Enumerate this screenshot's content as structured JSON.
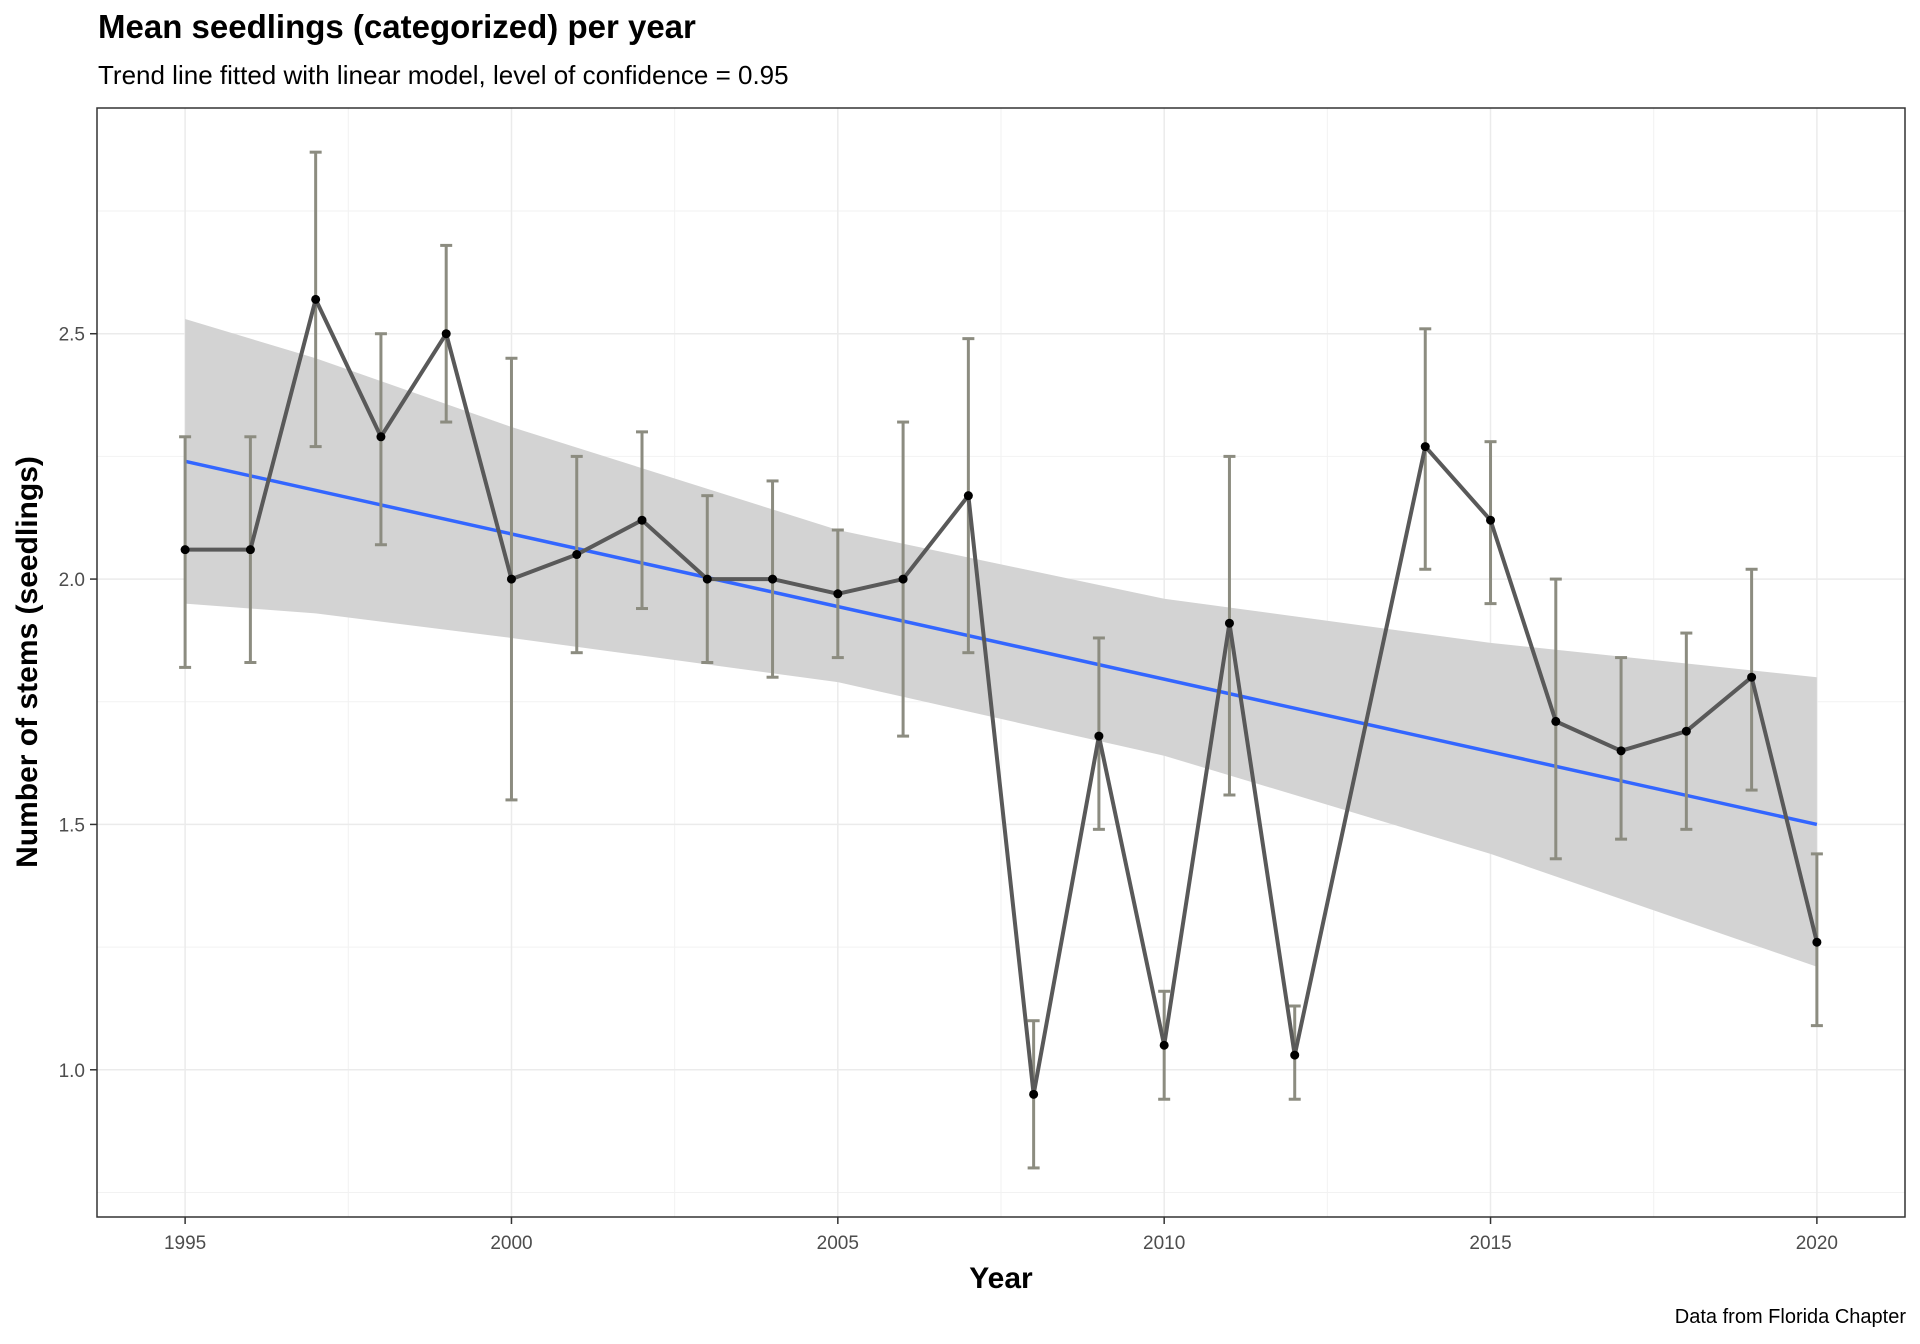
{
  "chart_data": {
    "type": "line",
    "title": "Mean seedlings (categorized) per year",
    "subtitle": "Trend line fitted with linear model, level of confidence = 0.95",
    "xlabel": "Year",
    "ylabel": "Number of stems (seedlings)",
    "caption": "Data from Florida Chapter",
    "xlim": [
      1993.65,
      2021.35
    ],
    "ylim": [
      0.7,
      2.96
    ],
    "x_ticks": [
      1995,
      2000,
      2005,
      2010,
      2015,
      2020
    ],
    "y_ticks": [
      1.0,
      1.5,
      2.0,
      2.5
    ],
    "x_tick_labels": [
      "1995",
      "2000",
      "2005",
      "2010",
      "2015",
      "2020"
    ],
    "y_tick_labels": [
      "1.0",
      "1.5",
      "2.0",
      "2.5"
    ],
    "grid": true,
    "series": [
      {
        "type": "line",
        "x": [
          1995,
          1996,
          1997,
          1998,
          1999,
          2000,
          2001,
          2002,
          2003,
          2004,
          2005,
          2006,
          2007,
          2008,
          2009,
          2010,
          2011,
          2012,
          2014,
          2015,
          2016,
          2017,
          2018,
          2019,
          2020
        ],
        "y": [
          2.06,
          2.06,
          2.57,
          2.29,
          2.5,
          2.0,
          2.05,
          2.12,
          2.0,
          2.0,
          1.97,
          2.0,
          2.17,
          0.95,
          1.68,
          1.05,
          1.91,
          1.03,
          2.27,
          2.12,
          1.71,
          1.65,
          1.69,
          1.8,
          1.26
        ],
        "err_low": [
          1.82,
          1.83,
          2.27,
          2.07,
          2.32,
          1.55,
          1.85,
          1.94,
          1.83,
          1.8,
          1.84,
          1.68,
          1.85,
          0.8,
          1.49,
          0.94,
          1.56,
          0.94,
          2.02,
          1.95,
          1.43,
          1.47,
          1.49,
          1.57,
          1.09
        ],
        "err_high": [
          2.29,
          2.29,
          2.87,
          2.5,
          2.68,
          2.45,
          2.25,
          2.3,
          2.17,
          2.2,
          2.1,
          2.32,
          2.49,
          1.1,
          1.88,
          1.16,
          2.25,
          1.13,
          2.51,
          2.28,
          2.0,
          1.84,
          1.89,
          2.02,
          1.44
        ],
        "line_color": "#595959",
        "point_color": "#000000",
        "errorbar_color": "#8c8c80"
      }
    ],
    "trend": {
      "method": "linear model",
      "x": [
        1995,
        2020
      ],
      "y": [
        2.24,
        1.5
      ],
      "color": "#3366ff"
    },
    "confidence_band": {
      "level": 0.95,
      "x": [
        1995,
        1997,
        2000,
        2005,
        2010,
        2015,
        2020
      ],
      "lower": [
        1.95,
        1.93,
        1.88,
        1.79,
        1.64,
        1.44,
        1.21
      ],
      "upper": [
        2.53,
        2.45,
        2.31,
        2.1,
        1.96,
        1.87,
        1.8
      ],
      "color": "#d3d3d3"
    }
  }
}
